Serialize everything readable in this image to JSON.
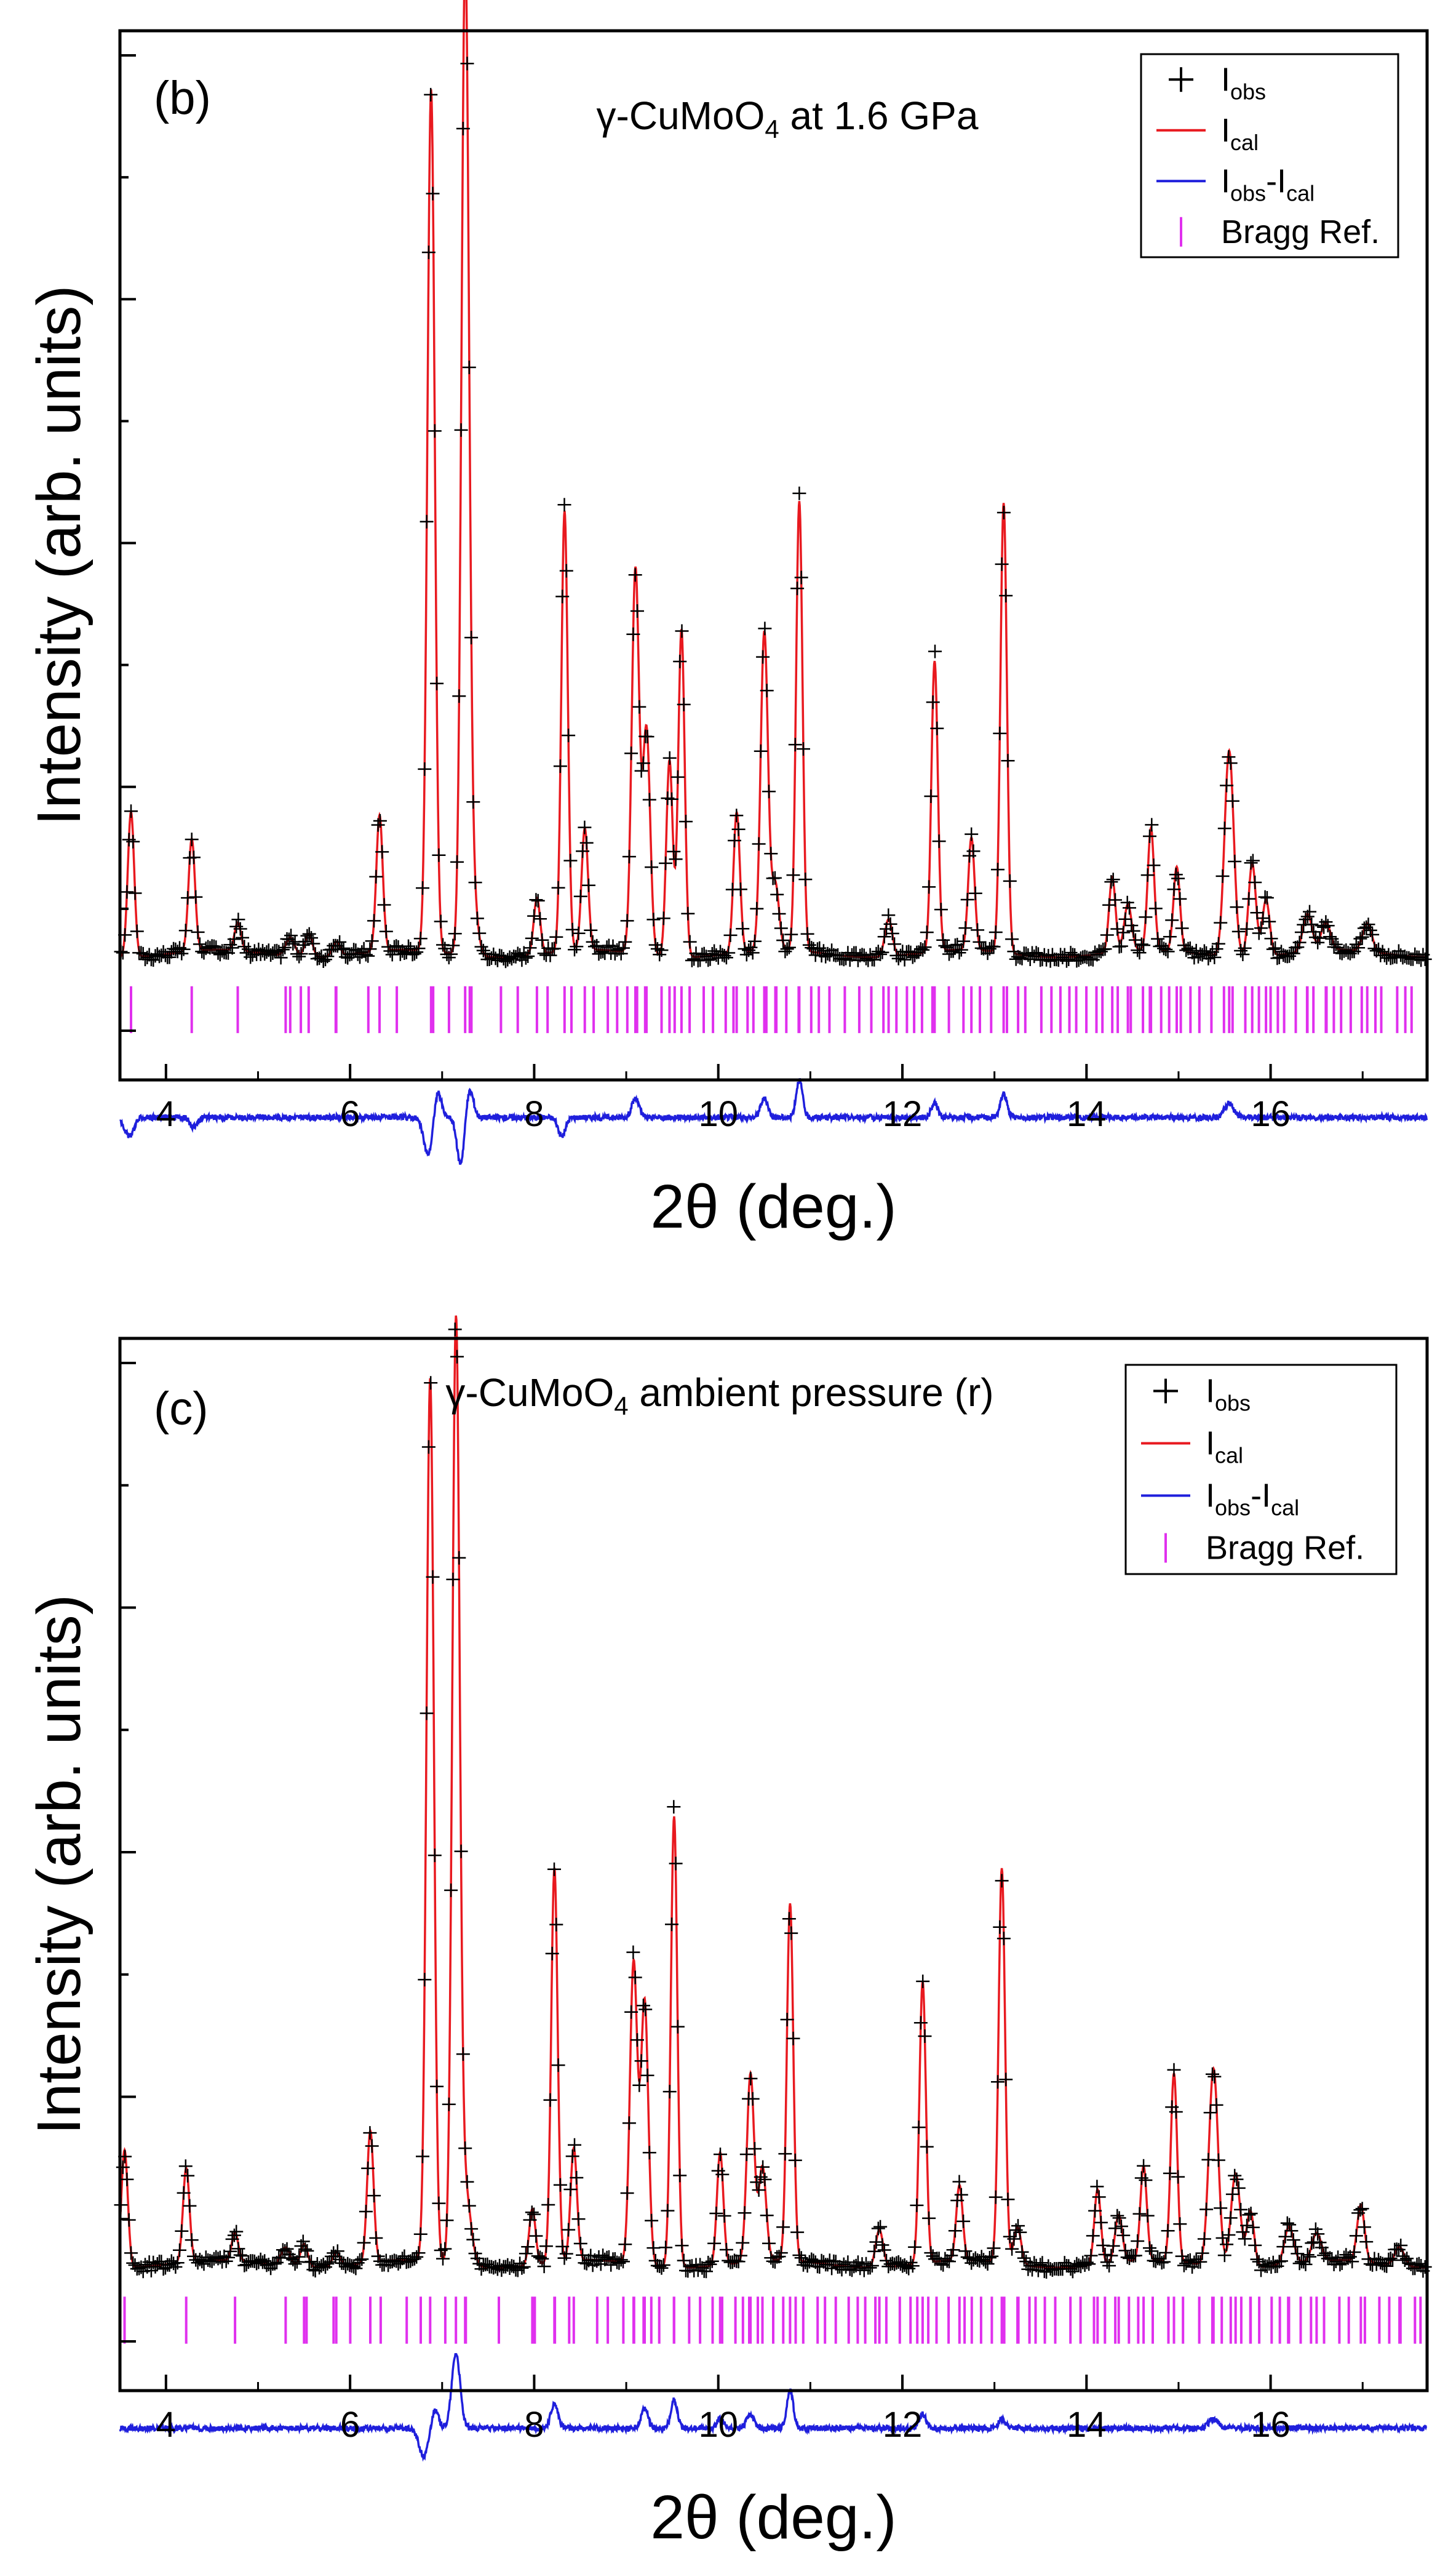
{
  "chart_data": [
    {
      "type": "line",
      "panel_label": "(b)",
      "title_prefix": "γ-CuMoO",
      "title_sub": "4",
      "title_suffix": " at 1.6 GPa",
      "xlabel": "2θ (deg.)",
      "ylabel": "Intensity (arb. units)",
      "xlim": [
        3.5,
        17.7
      ],
      "ylim": [
        -0.1,
        1.02
      ],
      "xticks": [
        4,
        6,
        8,
        10,
        12,
        14,
        16
      ],
      "xtick_labels": [
        "4",
        "6",
        "8",
        "10",
        "12",
        "14",
        "16"
      ],
      "legend_position": "top-right",
      "legend": [
        {
          "key": "obs",
          "main": "I",
          "sub": "obs"
        },
        {
          "key": "cal",
          "main": "I",
          "sub": "cal"
        },
        {
          "key": "diff",
          "main": "I",
          "sub": "obs",
          "mid": "-I",
          "sub2": "cal"
        },
        {
          "key": "bragg",
          "main": "Bragg Ref."
        }
      ],
      "baseline": 0.035,
      "diff_offset": -0.14,
      "bragg_band": [
        0.0,
        -0.05
      ],
      "peaks": [
        {
          "x": 3.62,
          "h": 0.155,
          "w": 0.035
        },
        {
          "x": 4.28,
          "h": 0.12,
          "w": 0.035
        },
        {
          "x": 4.78,
          "h": 0.03,
          "w": 0.035
        },
        {
          "x": 5.35,
          "h": 0.02,
          "w": 0.05
        },
        {
          "x": 5.55,
          "h": 0.025,
          "w": 0.04
        },
        {
          "x": 5.85,
          "h": 0.015,
          "w": 0.04
        },
        {
          "x": 6.32,
          "h": 0.145,
          "w": 0.035
        },
        {
          "x": 6.88,
          "h": 0.92,
          "w": 0.04
        },
        {
          "x": 7.25,
          "h": 1.0,
          "w": 0.04
        },
        {
          "x": 7.3,
          "h": 0.1,
          "w": 0.06
        },
        {
          "x": 8.03,
          "h": 0.06,
          "w": 0.035
        },
        {
          "x": 8.33,
          "h": 0.47,
          "w": 0.035
        },
        {
          "x": 8.55,
          "h": 0.13,
          "w": 0.035
        },
        {
          "x": 9.1,
          "h": 0.41,
          "w": 0.04
        },
        {
          "x": 9.22,
          "h": 0.24,
          "w": 0.04
        },
        {
          "x": 9.47,
          "h": 0.21,
          "w": 0.035
        },
        {
          "x": 9.6,
          "h": 0.35,
          "w": 0.035
        },
        {
          "x": 10.2,
          "h": 0.15,
          "w": 0.035
        },
        {
          "x": 10.5,
          "h": 0.34,
          "w": 0.04
        },
        {
          "x": 10.62,
          "h": 0.07,
          "w": 0.04
        },
        {
          "x": 10.88,
          "h": 0.48,
          "w": 0.035
        },
        {
          "x": 11.85,
          "h": 0.04,
          "w": 0.04
        },
        {
          "x": 12.35,
          "h": 0.31,
          "w": 0.035
        },
        {
          "x": 12.75,
          "h": 0.12,
          "w": 0.035
        },
        {
          "x": 13.1,
          "h": 0.48,
          "w": 0.035
        },
        {
          "x": 14.28,
          "h": 0.08,
          "w": 0.035
        },
        {
          "x": 14.45,
          "h": 0.05,
          "w": 0.04
        },
        {
          "x": 14.7,
          "h": 0.13,
          "w": 0.035
        },
        {
          "x": 14.98,
          "h": 0.09,
          "w": 0.035
        },
        {
          "x": 15.55,
          "h": 0.22,
          "w": 0.05
        },
        {
          "x": 15.8,
          "h": 0.1,
          "w": 0.04
        },
        {
          "x": 15.95,
          "h": 0.06,
          "w": 0.04
        },
        {
          "x": 16.4,
          "h": 0.04,
          "w": 0.05
        },
        {
          "x": 16.6,
          "h": 0.03,
          "w": 0.05
        },
        {
          "x": 17.05,
          "h": 0.03,
          "w": 0.05
        }
      ],
      "diff_features": [
        {
          "x": 3.6,
          "a": -0.02,
          "w": 0.05
        },
        {
          "x": 4.3,
          "a": -0.01,
          "w": 0.04
        },
        {
          "x": 6.85,
          "a": -0.04,
          "w": 0.05
        },
        {
          "x": 6.95,
          "a": 0.03,
          "w": 0.04
        },
        {
          "x": 7.2,
          "a": -0.05,
          "w": 0.04
        },
        {
          "x": 7.3,
          "a": 0.03,
          "w": 0.04
        },
        {
          "x": 8.3,
          "a": -0.02,
          "w": 0.04
        },
        {
          "x": 9.1,
          "a": 0.02,
          "w": 0.04
        },
        {
          "x": 10.5,
          "a": 0.02,
          "w": 0.04
        },
        {
          "x": 10.88,
          "a": 0.04,
          "w": 0.035
        },
        {
          "x": 12.35,
          "a": 0.015,
          "w": 0.035
        },
        {
          "x": 13.1,
          "a": 0.025,
          "w": 0.035
        },
        {
          "x": 15.55,
          "a": 0.015,
          "w": 0.05
        }
      ]
    },
    {
      "type": "line",
      "panel_label": "(c)",
      "title_prefix": "γ-CuMoO",
      "title_sub": "4",
      "title_suffix": " ambient pressure (r)",
      "xlabel": "2θ (deg.)",
      "ylabel": "Intensity (arb. units)",
      "xlim": [
        3.5,
        17.7
      ],
      "ylim": [
        -0.1,
        1.02
      ],
      "xticks": [
        4,
        6,
        8,
        10,
        12,
        14,
        16
      ],
      "xtick_labels": [
        "4",
        "6",
        "8",
        "10",
        "12",
        "14",
        "16"
      ],
      "legend_position": "top-right",
      "legend": [
        {
          "key": "obs",
          "main": "I",
          "sub": "obs"
        },
        {
          "key": "cal",
          "main": "I",
          "sub": "cal"
        },
        {
          "key": "diff",
          "main": "I",
          "sub": "obs",
          "mid": "-I",
          "sub2": "cal"
        },
        {
          "key": "bragg",
          "main": "Bragg Ref."
        }
      ],
      "baseline": 0.035,
      "diff_offset": -0.14,
      "bragg_band": [
        0.0,
        -0.05
      ],
      "peaks": [
        {
          "x": 3.55,
          "h": 0.125,
          "w": 0.035
        },
        {
          "x": 4.22,
          "h": 0.1,
          "w": 0.035
        },
        {
          "x": 4.75,
          "h": 0.03,
          "w": 0.035
        },
        {
          "x": 5.3,
          "h": 0.02,
          "w": 0.05
        },
        {
          "x": 5.5,
          "h": 0.025,
          "w": 0.04
        },
        {
          "x": 5.85,
          "h": 0.015,
          "w": 0.04
        },
        {
          "x": 6.22,
          "h": 0.14,
          "w": 0.035
        },
        {
          "x": 6.87,
          "h": 0.94,
          "w": 0.04
        },
        {
          "x": 7.15,
          "h": 0.99,
          "w": 0.04
        },
        {
          "x": 7.25,
          "h": 0.08,
          "w": 0.06
        },
        {
          "x": 7.98,
          "h": 0.06,
          "w": 0.035
        },
        {
          "x": 8.22,
          "h": 0.42,
          "w": 0.035
        },
        {
          "x": 8.43,
          "h": 0.12,
          "w": 0.035
        },
        {
          "x": 9.08,
          "h": 0.32,
          "w": 0.04
        },
        {
          "x": 9.2,
          "h": 0.28,
          "w": 0.04
        },
        {
          "x": 9.52,
          "h": 0.48,
          "w": 0.035
        },
        {
          "x": 10.02,
          "h": 0.12,
          "w": 0.035
        },
        {
          "x": 10.35,
          "h": 0.2,
          "w": 0.04
        },
        {
          "x": 10.48,
          "h": 0.1,
          "w": 0.04
        },
        {
          "x": 10.78,
          "h": 0.38,
          "w": 0.035
        },
        {
          "x": 11.75,
          "h": 0.04,
          "w": 0.04
        },
        {
          "x": 12.22,
          "h": 0.3,
          "w": 0.035
        },
        {
          "x": 12.62,
          "h": 0.08,
          "w": 0.035
        },
        {
          "x": 13.08,
          "h": 0.42,
          "w": 0.035
        },
        {
          "x": 13.25,
          "h": 0.04,
          "w": 0.04
        },
        {
          "x": 14.12,
          "h": 0.08,
          "w": 0.035
        },
        {
          "x": 14.35,
          "h": 0.05,
          "w": 0.04
        },
        {
          "x": 14.62,
          "h": 0.1,
          "w": 0.035
        },
        {
          "x": 14.95,
          "h": 0.2,
          "w": 0.035
        },
        {
          "x": 15.38,
          "h": 0.21,
          "w": 0.05
        },
        {
          "x": 15.62,
          "h": 0.1,
          "w": 0.05
        },
        {
          "x": 15.78,
          "h": 0.06,
          "w": 0.04
        },
        {
          "x": 16.2,
          "h": 0.04,
          "w": 0.05
        },
        {
          "x": 16.5,
          "h": 0.03,
          "w": 0.05
        },
        {
          "x": 16.98,
          "h": 0.06,
          "w": 0.04
        },
        {
          "x": 17.4,
          "h": 0.02,
          "w": 0.05
        }
      ],
      "diff_features": [
        {
          "x": 6.8,
          "a": -0.03,
          "w": 0.05
        },
        {
          "x": 6.92,
          "a": 0.02,
          "w": 0.04
        },
        {
          "x": 7.15,
          "a": 0.08,
          "w": 0.045
        },
        {
          "x": 8.22,
          "a": 0.025,
          "w": 0.04
        },
        {
          "x": 9.2,
          "a": 0.02,
          "w": 0.04
        },
        {
          "x": 9.52,
          "a": 0.03,
          "w": 0.035
        },
        {
          "x": 10.02,
          "a": 0.01,
          "w": 0.035
        },
        {
          "x": 10.35,
          "a": 0.015,
          "w": 0.04
        },
        {
          "x": 10.78,
          "a": 0.04,
          "w": 0.035
        },
        {
          "x": 12.22,
          "a": 0.015,
          "w": 0.035
        },
        {
          "x": 13.08,
          "a": 0.01,
          "w": 0.035
        },
        {
          "x": 15.38,
          "a": 0.01,
          "w": 0.05
        }
      ]
    }
  ],
  "colors": {
    "obs": "#000000",
    "cal": "#e8191f",
    "diff": "#1f1fdc",
    "bragg": "#e030ee",
    "axis": "#000000"
  }
}
